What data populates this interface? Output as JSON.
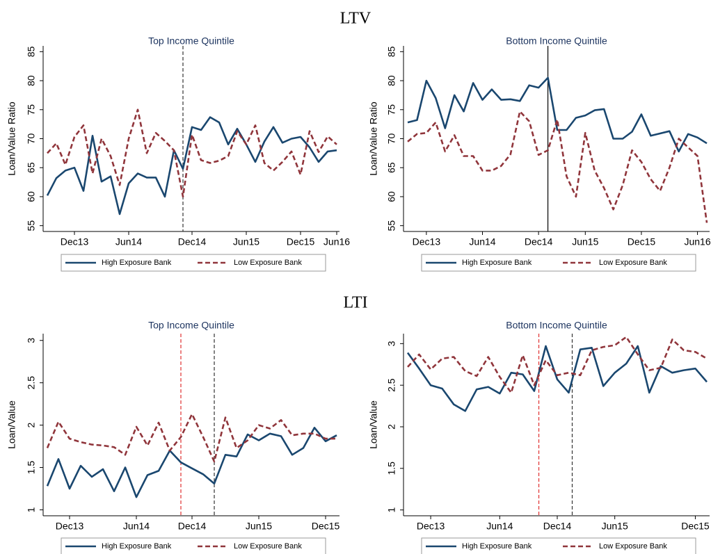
{
  "headings": [
    "LTV",
    "LTI"
  ],
  "chart_data": [
    {
      "type": "line",
      "title": "Top Income Quintile",
      "ylabel": "Loan/Value Ratio",
      "categories": [
        null,
        null,
        null,
        "Dec13",
        null,
        null,
        null,
        null,
        null,
        "Jun14",
        null,
        null,
        null,
        null,
        null,
        null,
        "Dec14",
        null,
        null,
        null,
        null,
        null,
        "Jun15",
        null,
        null,
        null,
        null,
        null,
        "Dec15",
        null,
        null,
        null,
        "Jun16"
      ],
      "series": [
        {
          "name": "High Exposure Bank",
          "color": "#1a476f",
          "style": "solid",
          "values": [
            60.2,
            63.2,
            64.5,
            65,
            61,
            70.5,
            62.6,
            63.5,
            57,
            62.3,
            64,
            63.3,
            63.3,
            60,
            68,
            64.8,
            72,
            71.5,
            73.7,
            72.8,
            69,
            71.7,
            69,
            66,
            69.5,
            72,
            69.3,
            70,
            70.3,
            68.5,
            66,
            67.8,
            68
          ]
        },
        {
          "name": "Low Exposure Bank",
          "color": "#90353b",
          "style": "dashed",
          "values": [
            67.5,
            69.2,
            65.5,
            70.3,
            72.3,
            64,
            70,
            67,
            62,
            70,
            75,
            67.5,
            71,
            69.6,
            68,
            60,
            70.7,
            66.3,
            65.8,
            66.2,
            67,
            71.3,
            69,
            72.3,
            65.8,
            64.5,
            66,
            67.8,
            63.8,
            71.3,
            67.7,
            70.4,
            69
          ]
        }
      ],
      "ylim": [
        54,
        86
      ],
      "yticks": [
        55,
        60,
        65,
        70,
        75,
        80,
        85
      ],
      "vlines": [
        {
          "x": 15,
          "color": "#333333",
          "style": "dashed"
        }
      ],
      "legend": "bottom"
    },
    {
      "type": "line",
      "title": "Bottom Income Quintile",
      "ylabel": "Loan/Value Ratio",
      "categories": [
        null,
        null,
        "Dec13",
        null,
        null,
        null,
        null,
        null,
        "Jun14",
        null,
        null,
        null,
        null,
        null,
        "Dec14",
        null,
        null,
        null,
        null,
        "Jun15",
        null,
        null,
        null,
        null,
        null,
        "Dec15",
        null,
        null,
        null,
        null,
        null,
        "Jun16",
        null
      ],
      "series": [
        {
          "name": "High Exposure Bank",
          "color": "#1a476f",
          "style": "solid",
          "values": [
            72.8,
            73.2,
            80,
            77,
            71.8,
            77.5,
            74.7,
            79.6,
            76.7,
            78.5,
            76.7,
            76.8,
            76.5,
            79.2,
            78.8,
            80.5,
            71.5,
            71.5,
            73.6,
            74,
            74.9,
            75.1,
            70,
            70,
            71.2,
            74.2,
            70.5,
            70.9,
            71.3,
            67.8,
            70.8,
            70.2,
            69.2
          ]
        },
        {
          "name": "Low Exposure Bank",
          "color": "#90353b",
          "style": "dashed",
          "values": [
            69.5,
            70.8,
            71,
            72.8,
            67.8,
            70.6,
            67,
            67,
            64.5,
            64.5,
            65.3,
            67.3,
            74.7,
            73,
            67.2,
            68,
            73.3,
            63.5,
            60,
            71,
            64.5,
            61.5,
            57.8,
            62,
            68,
            66,
            63,
            61,
            65,
            70,
            68.5,
            67,
            55.5
          ]
        }
      ],
      "ylim": [
        54,
        86
      ],
      "yticks": [
        55,
        60,
        65,
        70,
        75,
        80,
        85
      ],
      "vlines": [
        {
          "x": 15,
          "color": "#000000",
          "style": "solid"
        }
      ],
      "legend": "bottom"
    },
    {
      "type": "line",
      "title": "Top Income Quintile",
      "ylabel": "Loan/Value",
      "categories": [
        null,
        null,
        "Dec13",
        null,
        null,
        null,
        null,
        null,
        "Jun14",
        null,
        null,
        null,
        null,
        "Dec14",
        null,
        null,
        null,
        null,
        null,
        "Jun15",
        null,
        null,
        null,
        null,
        null,
        "Dec15",
        null
      ],
      "series": [
        {
          "name": "High Exposure Bank",
          "color": "#1a476f",
          "style": "solid",
          "values": [
            1.28,
            1.6,
            1.25,
            1.52,
            1.39,
            1.48,
            1.22,
            1.5,
            1.15,
            1.41,
            1.46,
            1.7,
            1.56,
            1.49,
            1.42,
            1.31,
            1.65,
            1.63,
            1.89,
            1.82,
            1.9,
            1.87,
            1.65,
            1.73,
            1.97,
            1.81,
            1.88
          ]
        },
        {
          "name": "Low Exposure Bank",
          "color": "#90353b",
          "style": "dashed",
          "values": [
            1.73,
            2.04,
            1.84,
            1.8,
            1.77,
            1.76,
            1.74,
            1.65,
            1.98,
            1.76,
            2.03,
            1.7,
            1.86,
            2.13,
            1.86,
            1.57,
            2.09,
            1.73,
            1.82,
            2.0,
            1.96,
            2.06,
            1.88,
            1.9,
            1.9,
            1.84,
            1.84
          ]
        }
      ],
      "ylim": [
        0.93,
        3.08
      ],
      "yticks": [
        1,
        1.5,
        2,
        2.5,
        3
      ],
      "vlines": [
        {
          "x": 12,
          "color": "#e03030",
          "style": "dashed"
        },
        {
          "x": 15,
          "color": "#333333",
          "style": "dashed"
        }
      ],
      "legend": "bottom"
    },
    {
      "type": "line",
      "title": "Bottom Income Quintile",
      "ylabel": "Loan/Value",
      "categories": [
        null,
        null,
        "Dec13",
        null,
        null,
        null,
        null,
        null,
        "Jun14",
        null,
        null,
        null,
        null,
        "Dec14",
        null,
        null,
        null,
        null,
        "Jun15",
        null,
        null,
        null,
        null,
        null,
        null,
        "Dec15",
        null
      ],
      "series": [
        {
          "name": "High Exposure Bank",
          "color": "#1a476f",
          "style": "solid",
          "values": [
            2.89,
            2.7,
            2.5,
            2.46,
            2.27,
            2.19,
            2.45,
            2.48,
            2.4,
            2.65,
            2.63,
            2.43,
            2.97,
            2.57,
            2.41,
            2.93,
            2.95,
            2.49,
            2.65,
            2.76,
            2.97,
            2.41,
            2.73,
            2.65,
            2.68,
            2.7,
            2.54
          ]
        },
        {
          "name": "Low Exposure Bank",
          "color": "#90353b",
          "style": "dashed",
          "values": [
            2.72,
            2.87,
            2.69,
            2.82,
            2.84,
            2.67,
            2.61,
            2.84,
            2.6,
            2.41,
            2.86,
            2.5,
            2.8,
            2.62,
            2.65,
            2.62,
            2.92,
            2.96,
            2.98,
            3.08,
            2.87,
            2.68,
            2.71,
            3.05,
            2.92,
            2.9,
            2.82
          ]
        }
      ],
      "ylim": [
        0.93,
        3.12
      ],
      "yticks": [
        1,
        1.5,
        2,
        2.5,
        3
      ],
      "vlines": [
        {
          "x": 11.4,
          "color": "#e03030",
          "style": "dashed"
        },
        {
          "x": 14.3,
          "color": "#333333",
          "style": "dashed"
        }
      ],
      "legend": "bottom"
    }
  ]
}
